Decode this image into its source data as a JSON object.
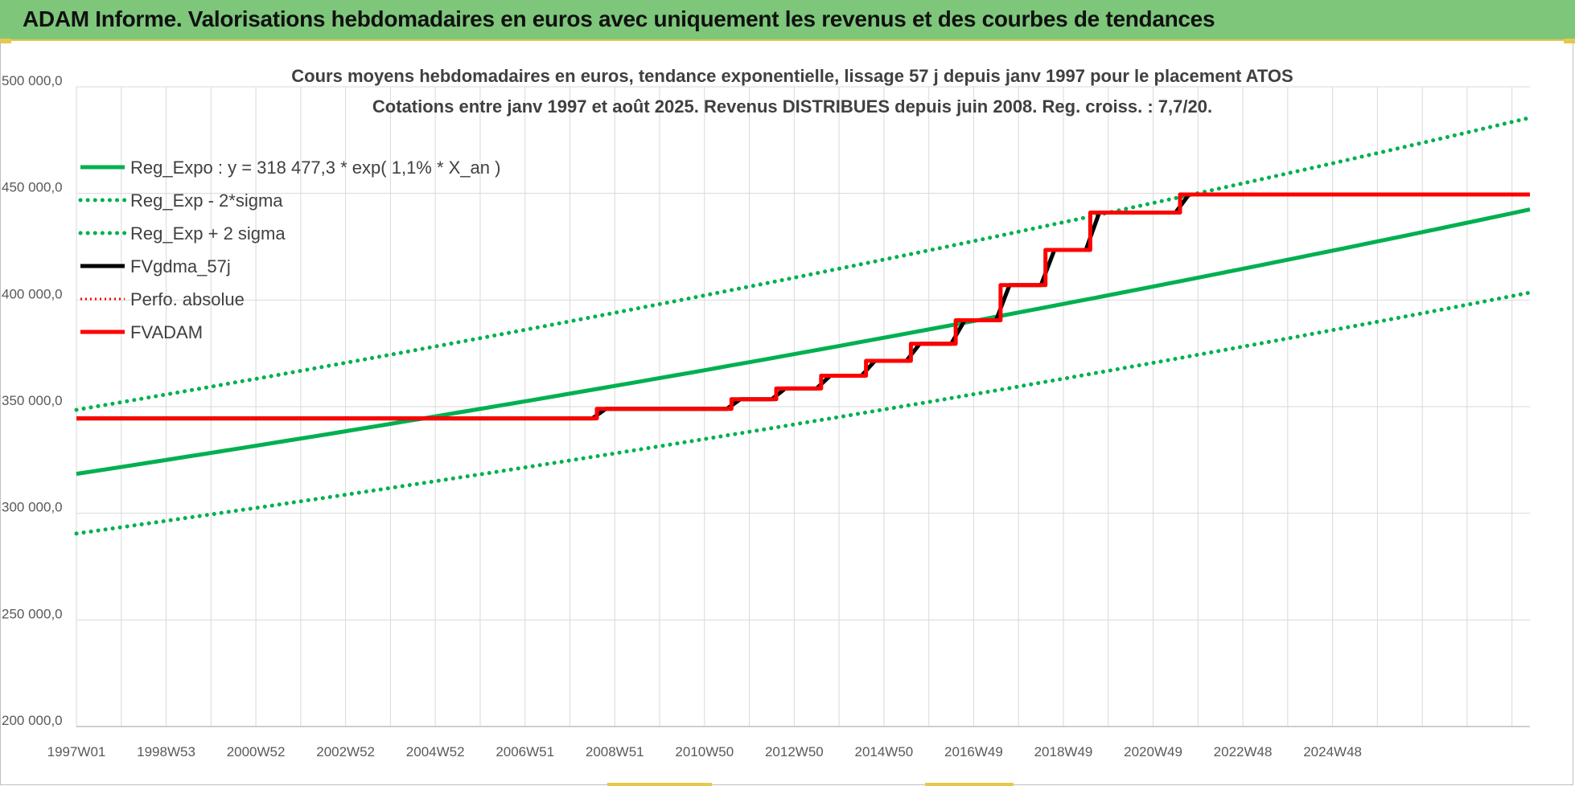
{
  "header": {
    "title": "ADAM Informe. Valorisations hebdomadaires en euros avec uniquement les revenus et des courbes de tendances"
  },
  "colors": {
    "banner": "#7dc67a",
    "reg_expo": "#00b050",
    "fvgdma": "#000000",
    "perfo": "#ff0000",
    "fvadam": "#ff0000",
    "grid": "#d9d9d9"
  },
  "chart_data": {
    "type": "line",
    "title": "Cours moyens hebdomadaires en euros, tendance exponentielle, lissage 57 j depuis janv 1997 pour le placement ATOS",
    "subtitle": "Cotations entre janv 1997 et août 2025. Revenus DISTRIBUES depuis juin 2008. Reg. croiss. : 7,7/20.",
    "xlabel": "",
    "ylabel": "",
    "ylim": [
      200000,
      500000
    ],
    "xlim": [
      1997.0,
      2029.4
    ],
    "grid": true,
    "legend_position": "top-left",
    "yticks": [
      "500 000,0",
      "450 000,0",
      "400 000,0",
      "350 000,0",
      "300 000,0",
      "250 000,0",
      "200 000,0"
    ],
    "ytick_values": [
      500000,
      450000,
      400000,
      350000,
      300000,
      250000,
      200000
    ],
    "xticks": [
      "1997W01",
      "1998W53",
      "2000W52",
      "2002W52",
      "2004W52",
      "2006W51",
      "2008W51",
      "2010W50",
      "2012W50",
      "2014W50",
      "2016W49",
      "2018W49",
      "2020W49",
      "2022W48",
      "2024W48"
    ],
    "xtick_values": [
      1997.0,
      1999.0,
      2001.0,
      2003.0,
      2005.0,
      2007.0,
      2009.0,
      2011.0,
      2013.0,
      2015.0,
      2017.0,
      2019.0,
      2021.0,
      2023.0,
      2025.0
    ],
    "series": [
      {
        "name": "Reg_Expo : y = 318 477,3 * exp( 1,1% *  X_an )",
        "style": "solid",
        "x": [
          1997.0,
          2029.4
        ],
        "y": [
          318477,
          442500
        ]
      },
      {
        "name": "Reg_Exp - 2*sigma",
        "style": "dotted",
        "x": [
          1997.0,
          2029.4
        ],
        "y": [
          290500,
          403500
        ]
      },
      {
        "name": "Reg_Exp + 2 sigma",
        "style": "dotted",
        "x": [
          1997.0,
          2029.4
        ],
        "y": [
          348500,
          485500
        ]
      },
      {
        "name": "FVgdma_57j",
        "style": "solid",
        "x": [
          1997.0,
          2008.5,
          2008.8,
          2011.5,
          2011.8,
          2012.5,
          2012.8,
          2013.5,
          2013.8,
          2014.5,
          2014.8,
          2015.5,
          2015.8,
          2016.5,
          2016.8,
          2017.5,
          2017.8,
          2018.5,
          2018.8,
          2019.5,
          2019.8,
          2021.5,
          2021.8,
          2029.4
        ],
        "y": [
          344500,
          344500,
          349000,
          349000,
          353500,
          353500,
          358500,
          358500,
          364500,
          364500,
          371500,
          371500,
          379500,
          379500,
          390500,
          390500,
          407000,
          407000,
          423500,
          423500,
          441000,
          441000,
          449500,
          449500
        ]
      },
      {
        "name": "Perfo. absolue",
        "style": "dotted",
        "x": [],
        "y": []
      },
      {
        "name": "FVADAM",
        "style": "solid",
        "x": [
          1997.0,
          2008.6,
          2008.6,
          2011.6,
          2011.6,
          2012.6,
          2012.6,
          2013.6,
          2013.6,
          2014.6,
          2014.6,
          2015.6,
          2015.6,
          2016.6,
          2016.6,
          2017.6,
          2017.6,
          2018.6,
          2018.6,
          2019.6,
          2019.6,
          2021.6,
          2021.6,
          2029.4
        ],
        "y": [
          344500,
          344500,
          349000,
          349000,
          353500,
          353500,
          358500,
          358500,
          364500,
          364500,
          371500,
          371500,
          379500,
          379500,
          390500,
          390500,
          407000,
          407000,
          423500,
          423500,
          441000,
          441000,
          449500,
          449500
        ]
      }
    ]
  }
}
